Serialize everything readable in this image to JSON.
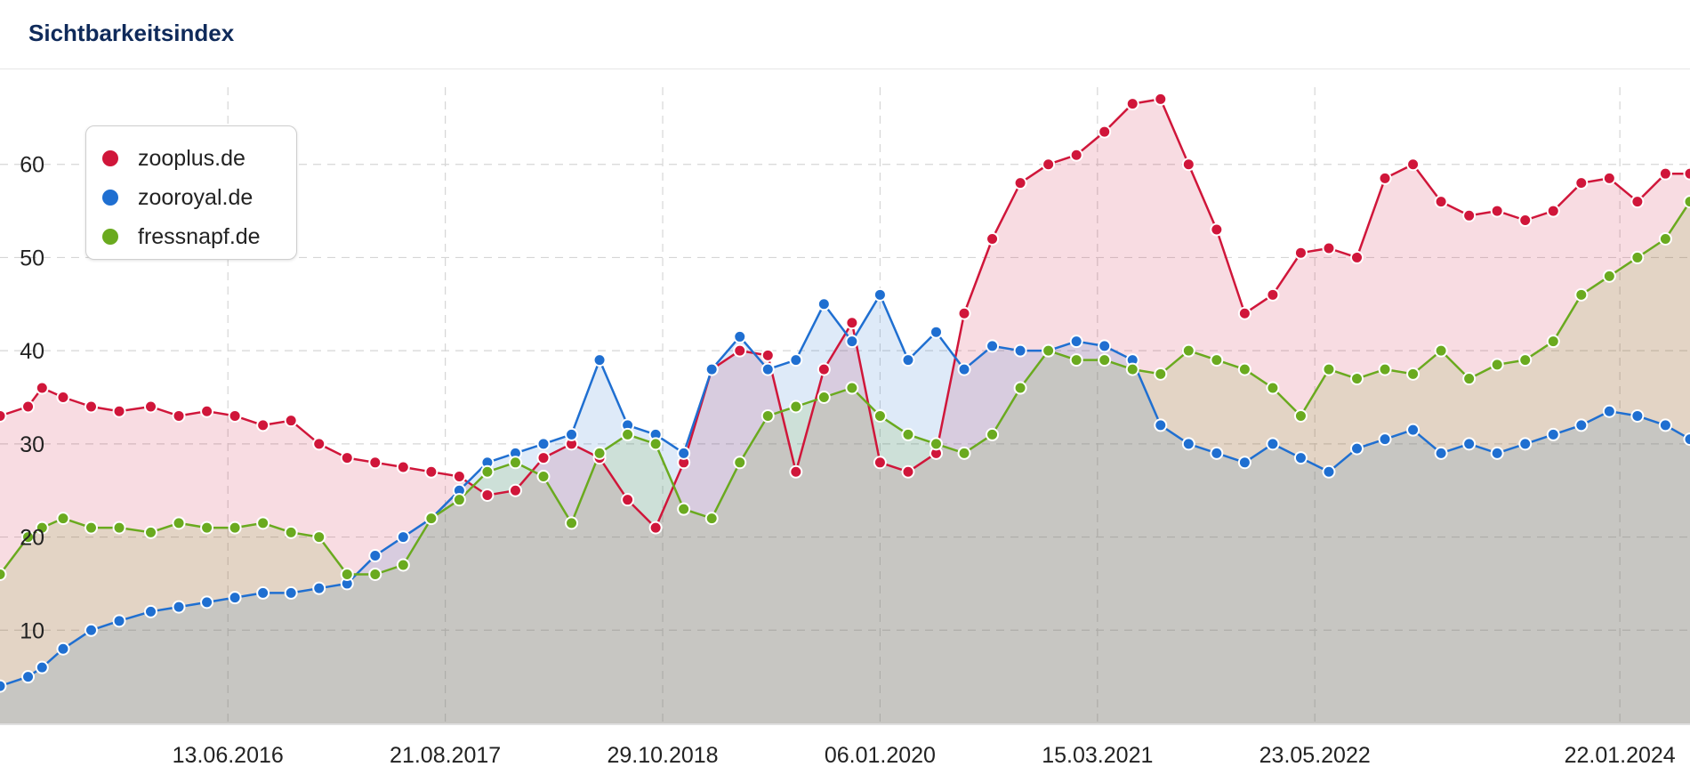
{
  "header": {
    "title": "Sichtbarkeitsindex"
  },
  "chart_data": {
    "type": "area",
    "title": "Sichtbarkeitsindex",
    "xlabel": "",
    "ylabel": "",
    "x_ticks": [
      "13.06.2016",
      "21.08.2017",
      "29.10.2018",
      "06.01.2020",
      "15.03.2021",
      "23.05.2022",
      "22.01.2024"
    ],
    "y_ticks": [
      10,
      20,
      30,
      40,
      50,
      60
    ],
    "ylim": [
      0,
      70
    ],
    "x_range": [
      "2015-03-16",
      "2024-06-10"
    ],
    "grid": true,
    "legend": "top-left",
    "series": [
      {
        "name": "zooplus.de",
        "color": "#d0163a",
        "x": [
          "2015-03-16",
          "2015-05-11",
          "2015-06-08",
          "2015-07-20",
          "2015-09-14",
          "2015-11-09",
          "2016-01-11",
          "2016-03-07",
          "2016-05-02",
          "2016-06-27",
          "2016-08-22",
          "2016-10-17",
          "2016-12-12",
          "2017-02-06",
          "2017-04-03",
          "2017-05-29",
          "2017-07-24",
          "2017-09-18",
          "2017-11-13",
          "2018-01-08",
          "2018-03-05",
          "2018-04-30",
          "2018-06-25",
          "2018-08-20",
          "2018-10-15",
          "2018-12-10",
          "2019-02-04",
          "2019-04-01",
          "2019-05-27",
          "2019-07-22",
          "2019-09-16",
          "2019-11-11",
          "2020-01-06",
          "2020-03-02",
          "2020-04-27",
          "2020-06-22",
          "2020-08-17",
          "2020-10-12",
          "2020-12-07",
          "2021-02-01",
          "2021-03-29",
          "2021-05-24",
          "2021-07-19",
          "2021-09-13",
          "2021-11-08",
          "2022-01-03",
          "2022-02-28",
          "2022-04-25",
          "2022-06-20",
          "2022-08-15",
          "2022-10-10",
          "2022-12-05",
          "2023-01-30",
          "2023-03-27",
          "2023-05-22",
          "2023-07-17",
          "2023-09-11",
          "2023-11-06",
          "2024-01-01",
          "2024-02-26",
          "2024-04-22",
          "2024-06-10"
        ],
        "values": [
          33,
          34,
          36,
          35,
          34,
          33.5,
          34,
          33,
          33.5,
          33,
          32,
          32.5,
          30,
          28.5,
          28,
          27.5,
          27,
          26.5,
          24.5,
          25,
          28.5,
          30,
          28.5,
          24,
          21,
          28,
          38,
          40,
          39.5,
          27,
          38,
          43,
          28,
          27,
          29,
          44,
          52,
          58,
          60,
          61,
          63.5,
          66.5,
          67,
          60,
          53,
          44,
          46,
          50.5,
          51,
          50,
          58.5,
          60,
          56,
          54.5,
          55,
          54,
          55,
          58,
          58.5,
          56,
          59,
          59
        ]
      },
      {
        "name": "zooroyal.de",
        "color": "#1f6fd1",
        "x": [
          "2015-03-16",
          "2015-05-11",
          "2015-06-08",
          "2015-07-20",
          "2015-09-14",
          "2015-11-09",
          "2016-01-11",
          "2016-03-07",
          "2016-05-02",
          "2016-06-27",
          "2016-08-22",
          "2016-10-17",
          "2016-12-12",
          "2017-02-06",
          "2017-04-03",
          "2017-05-29",
          "2017-07-24",
          "2017-09-18",
          "2017-11-13",
          "2018-01-08",
          "2018-03-05",
          "2018-04-30",
          "2018-06-25",
          "2018-08-20",
          "2018-10-15",
          "2018-12-10",
          "2019-02-04",
          "2019-04-01",
          "2019-05-27",
          "2019-07-22",
          "2019-09-16",
          "2019-11-11",
          "2020-01-06",
          "2020-03-02",
          "2020-04-27",
          "2020-06-22",
          "2020-08-17",
          "2020-10-12",
          "2020-12-07",
          "2021-02-01",
          "2021-03-29",
          "2021-05-24",
          "2021-07-19",
          "2021-09-13",
          "2021-11-08",
          "2022-01-03",
          "2022-02-28",
          "2022-04-25",
          "2022-06-20",
          "2022-08-15",
          "2022-10-10",
          "2022-12-05",
          "2023-01-30",
          "2023-03-27",
          "2023-05-22",
          "2023-07-17",
          "2023-09-11",
          "2023-11-06",
          "2024-01-01",
          "2024-02-26",
          "2024-04-22",
          "2024-06-10"
        ],
        "values": [
          4,
          5,
          6,
          8,
          10,
          11,
          12,
          12.5,
          13,
          13.5,
          14,
          14,
          14.5,
          15,
          18,
          20,
          22,
          25,
          28,
          29,
          30,
          31,
          39,
          32,
          31,
          29,
          38,
          41.5,
          38,
          39,
          45,
          41,
          46,
          39,
          42,
          38,
          40.5,
          40,
          40,
          41,
          40.5,
          39,
          32,
          30,
          29,
          28,
          30,
          28.5,
          27,
          29.5,
          30.5,
          31.5,
          29,
          30,
          29,
          30,
          31,
          32,
          33.5,
          33,
          32,
          30.5
        ]
      },
      {
        "name": "fressnapf.de",
        "color": "#6aaa1f",
        "x": [
          "2015-03-16",
          "2015-05-11",
          "2015-06-08",
          "2015-07-20",
          "2015-09-14",
          "2015-11-09",
          "2016-01-11",
          "2016-03-07",
          "2016-05-02",
          "2016-06-27",
          "2016-08-22",
          "2016-10-17",
          "2016-12-12",
          "2017-02-06",
          "2017-04-03",
          "2017-05-29",
          "2017-07-24",
          "2017-09-18",
          "2017-11-13",
          "2018-01-08",
          "2018-03-05",
          "2018-04-30",
          "2018-06-25",
          "2018-08-20",
          "2018-10-15",
          "2018-12-10",
          "2019-02-04",
          "2019-04-01",
          "2019-05-27",
          "2019-07-22",
          "2019-09-16",
          "2019-11-11",
          "2020-01-06",
          "2020-03-02",
          "2020-04-27",
          "2020-06-22",
          "2020-08-17",
          "2020-10-12",
          "2020-12-07",
          "2021-02-01",
          "2021-03-29",
          "2021-05-24",
          "2021-07-19",
          "2021-09-13",
          "2021-11-08",
          "2022-01-03",
          "2022-02-28",
          "2022-04-25",
          "2022-06-20",
          "2022-08-15",
          "2022-10-10",
          "2022-12-05",
          "2023-01-30",
          "2023-03-27",
          "2023-05-22",
          "2023-07-17",
          "2023-09-11",
          "2023-11-06",
          "2024-01-01",
          "2024-02-26",
          "2024-04-22",
          "2024-06-10"
        ],
        "values": [
          16,
          20,
          21,
          22,
          21,
          21,
          20.5,
          21.5,
          21,
          21,
          21.5,
          20.5,
          20,
          16,
          16,
          17,
          22,
          24,
          27,
          28,
          26.5,
          21.5,
          29,
          31,
          30,
          23,
          22,
          28,
          33,
          34,
          35,
          36,
          33,
          31,
          30,
          29,
          31,
          36,
          40,
          39,
          39,
          38,
          37.5,
          40,
          39,
          38,
          36,
          33,
          38,
          37,
          38,
          37.5,
          40,
          37,
          38.5,
          39,
          41,
          46,
          48,
          50,
          52,
          56
        ]
      }
    ]
  }
}
